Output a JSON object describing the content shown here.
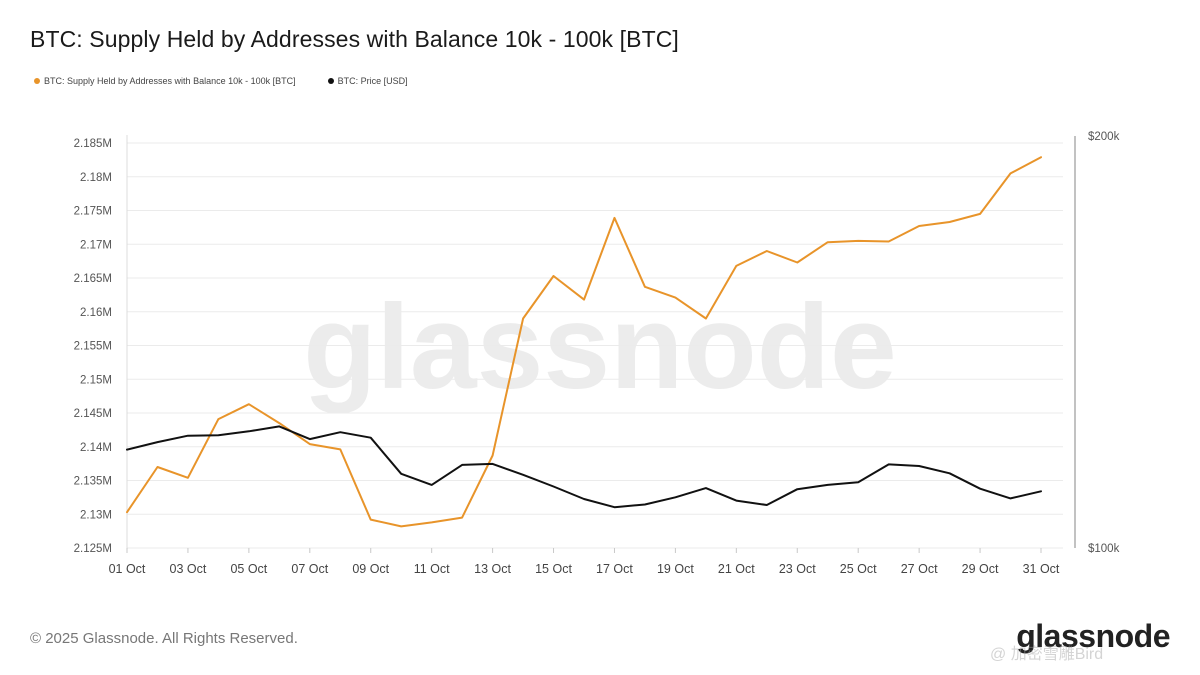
{
  "title": "BTC: Supply Held by Addresses with Balance 10k - 100k [BTC]",
  "legend": [
    {
      "label": "BTC: Supply Held by Addresses with Balance 10k - 100k [BTC]",
      "color": "#e8942a"
    },
    {
      "label": "BTC: Price [USD]",
      "color": "#111111"
    }
  ],
  "footer": "© 2025 Glassnode. All Rights Reserved.",
  "brand": "glassnode",
  "watermark": "glassnode",
  "overlay_text": "@ 加密雪雕Bird",
  "chart_data": {
    "type": "line",
    "title": "BTC: Supply Held by Addresses with Balance 10k - 100k [BTC]",
    "x": [
      "01 Oct",
      "02 Oct",
      "03 Oct",
      "04 Oct",
      "05 Oct",
      "06 Oct",
      "07 Oct",
      "08 Oct",
      "09 Oct",
      "10 Oct",
      "11 Oct",
      "12 Oct",
      "13 Oct",
      "14 Oct",
      "15 Oct",
      "16 Oct",
      "17 Oct",
      "18 Oct",
      "19 Oct",
      "20 Oct",
      "21 Oct",
      "22 Oct",
      "23 Oct",
      "24 Oct",
      "25 Oct",
      "26 Oct",
      "27 Oct",
      "28 Oct",
      "29 Oct",
      "30 Oct",
      "31 Oct"
    ],
    "x_tick_labels": [
      "01 Oct",
      "03 Oct",
      "05 Oct",
      "07 Oct",
      "09 Oct",
      "11 Oct",
      "13 Oct",
      "15 Oct",
      "17 Oct",
      "19 Oct",
      "21 Oct",
      "23 Oct",
      "25 Oct",
      "27 Oct",
      "29 Oct",
      "31 Oct"
    ],
    "y_left": {
      "ylim": [
        2125000,
        2185000
      ],
      "ticks": [
        2125000,
        2130000,
        2135000,
        2140000,
        2145000,
        2150000,
        2155000,
        2160000,
        2165000,
        2170000,
        2175000,
        2180000,
        2185000
      ],
      "tick_labels": [
        "2.125M",
        "2.13M",
        "2.135M",
        "2.14M",
        "2.145M",
        "2.15M",
        "2.155M",
        "2.16M",
        "2.165M",
        "2.17M",
        "2.175M",
        "2.18M",
        "2.185M"
      ]
    },
    "y_right": {
      "scale": "log",
      "ylim": [
        100000,
        200000
      ],
      "ticks": [
        100000,
        200000
      ],
      "tick_labels": [
        "$100k",
        "$200k"
      ]
    },
    "grid": true,
    "legend_position": "top-left",
    "series": [
      {
        "name": "BTC: Supply Held by Addresses with Balance 10k - 100k [BTC]",
        "axis": "left",
        "color": "#e8942a",
        "values": [
          2130300,
          2137000,
          2135400,
          2144100,
          2146300,
          2143500,
          2140400,
          2139600,
          2129200,
          2128200,
          2128800,
          2129500,
          2138700,
          2159000,
          2165300,
          2161800,
          2173900,
          2163700,
          2162100,
          2159000,
          2166800,
          2169000,
          2167300,
          2170300,
          2170500,
          2170400,
          2172700,
          2173300,
          2174500,
          2180500,
          2182900
        ]
      },
      {
        "name": "BTC: Price [USD]",
        "axis": "right",
        "color": "#111111",
        "values": [
          118000,
          119500,
          120800,
          120900,
          121700,
          122700,
          120100,
          121500,
          120400,
          113300,
          111200,
          115000,
          115200,
          113100,
          110900,
          108600,
          107100,
          107600,
          108900,
          110600,
          108300,
          107500,
          110400,
          111200,
          111700,
          115100,
          114800,
          113400,
          110500,
          108700,
          110000
        ]
      }
    ]
  }
}
